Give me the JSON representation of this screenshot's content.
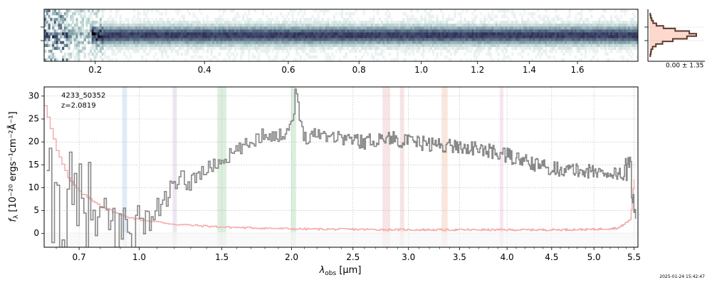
{
  "chart_data": [
    {
      "name": "2d-spectrum",
      "type": "heatmap",
      "x_scale": "sqrt",
      "xlim": [
        0.13,
        1.87
      ],
      "x_ticks": [
        0.2,
        0.4,
        0.6,
        0.8,
        1.0,
        1.2,
        1.4,
        1.6
      ],
      "x_tick_labels": [
        "0.2",
        "0.4",
        "0.6",
        "0.8",
        "1.0",
        "1.2",
        "1.4",
        "1.6"
      ],
      "trace_profile": "dark horizontal trace centered in the slit, noisy at the blue end",
      "colormap": [
        "#ffffff",
        "#b9d2d0",
        "#6f8b9a",
        "#3a3f66",
        "#000000"
      ]
    },
    {
      "name": "spatial-profile",
      "type": "line",
      "annotation": "0.00 ± 1.35",
      "profile_values": [
        0.02,
        0.03,
        0.05,
        0.08,
        0.15,
        0.3,
        0.55,
        0.85,
        1.0,
        0.8,
        0.5,
        0.28,
        0.14,
        0.07,
        0.04,
        0.03,
        0.02
      ],
      "line_color": "#5b3a32",
      "fill_color": "#fcd9cc"
    },
    {
      "name": "1d-spectrum",
      "type": "line",
      "title": "",
      "object_id": "4233_50352",
      "redshift_label": "z=2.0819",
      "xlabel": "λobs [μm]",
      "xlabel_main": "λ",
      "xlabel_sub": "obs",
      "xlabel_unit": " [μm]",
      "ylabel": "fλ [10⁻²⁰ ergs⁻¹cm⁻²Å⁻¹]",
      "ylabel_main": "f",
      "ylabel_sub": "λ",
      "ylabel_unit": " [10⁻²⁰ ergs⁻¹cm⁻²Å⁻¹]",
      "x_scale": "sqrt",
      "xlim": [
        0.55,
        5.55
      ],
      "ylim": [
        -3,
        32
      ],
      "x_ticks": [
        0.7,
        1.0,
        1.5,
        2.0,
        2.5,
        3.0,
        3.5,
        4.0,
        4.5,
        5.0,
        5.5
      ],
      "x_tick_labels": [
        "0.7",
        "1.0",
        "1.5",
        "2.0",
        "2.5",
        "3.0",
        "3.5",
        "4.0",
        "4.5",
        "5.0",
        "5.5"
      ],
      "y_ticks": [
        0,
        5,
        10,
        15,
        20,
        25,
        30
      ],
      "y_tick_labels": [
        "0",
        "5",
        "10",
        "15",
        "20",
        "25",
        "30"
      ],
      "grid": true,
      "series": [
        {
          "name": "flux",
          "color": "#888888",
          "x": [
            0.6,
            0.7,
            0.8,
            0.9,
            1.0,
            1.05,
            1.1,
            1.15,
            1.2,
            1.3,
            1.4,
            1.5,
            1.6,
            1.7,
            1.8,
            1.9,
            2.0,
            2.03,
            2.06,
            2.1,
            2.2,
            2.4,
            2.6,
            2.8,
            3.0,
            3.2,
            3.5,
            3.8,
            4.0,
            4.3,
            4.6,
            5.0,
            5.3,
            5.45,
            5.5
          ],
          "y": [
            5,
            3,
            2,
            1,
            2,
            3,
            5,
            8,
            10,
            12,
            14,
            16,
            18,
            20,
            22,
            21,
            24,
            31,
            25,
            21,
            22,
            21,
            20,
            21,
            20,
            19.5,
            19,
            18,
            17,
            15,
            14,
            13.5,
            13,
            14,
            4
          ]
        },
        {
          "name": "uncertainty",
          "color": "#f4a8a8",
          "x": [
            0.55,
            0.6,
            0.65,
            0.7,
            0.8,
            0.9,
            1.0,
            1.2,
            1.5,
            2.0,
            2.5,
            3.0,
            3.5,
            4.0,
            4.5,
            5.0,
            5.3,
            5.45,
            5.5
          ],
          "y": [
            28,
            18,
            12,
            9,
            6,
            4,
            3,
            2,
            1.4,
            1.0,
            0.9,
            0.8,
            0.8,
            0.8,
            0.8,
            0.9,
            1.2,
            3,
            12
          ]
        }
      ],
      "shaded_bands": [
        {
          "x": [
            0.91,
            0.935
          ],
          "color": "#d9e9f7"
        },
        {
          "x": [
            1.19,
            1.215
          ],
          "color": "#ebe0f0"
        },
        {
          "x": [
            1.47,
            1.53
          ],
          "color": "#d6ecd9"
        },
        {
          "x": [
            1.995,
            2.035
          ],
          "color": "#d6ecd9"
        },
        {
          "x": [
            2.76,
            2.83
          ],
          "color": "#f6e0e0"
        },
        {
          "x": [
            2.92,
            2.96
          ],
          "color": "#f6e0e0"
        },
        {
          "x": [
            3.32,
            3.38
          ],
          "color": "#fae2d5"
        },
        {
          "x": [
            3.92,
            3.96
          ],
          "color": "#f7e0f0"
        }
      ]
    }
  ],
  "timestamp": "2025-01-24 15:42:47"
}
